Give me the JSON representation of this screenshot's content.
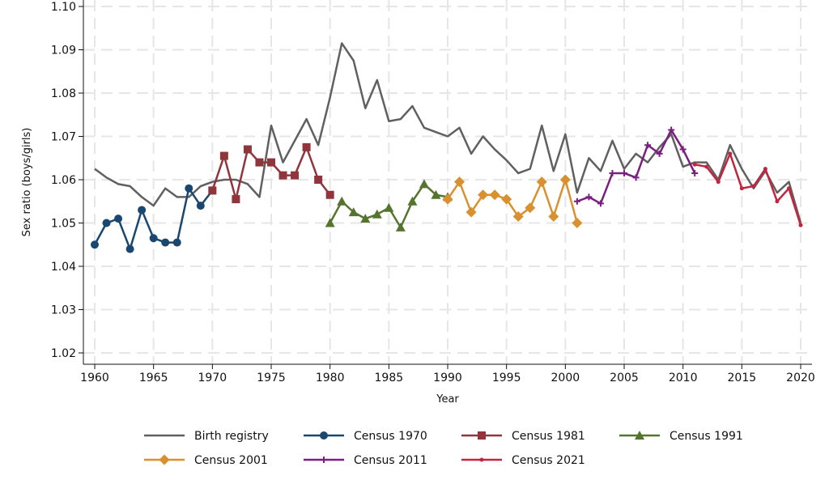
{
  "chart_data": {
    "type": "line",
    "xlabel": "Year",
    "ylabel": "Sex ratio (boys/girls)",
    "xlim": [
      1959,
      2021
    ],
    "ylim": [
      1.018,
      1.102
    ],
    "xticks": [
      1960,
      1965,
      1970,
      1975,
      1980,
      1985,
      1990,
      1995,
      2000,
      2005,
      2010,
      2015,
      2020
    ],
    "yticks": [
      "1.02",
      "1.03",
      "1.04",
      "1.05",
      "1.06",
      "1.07",
      "1.08",
      "1.09",
      "1.10"
    ],
    "grid": true,
    "legend_position": "bottom",
    "series": [
      {
        "name": "Birth registry",
        "color": "#606060",
        "marker": "none",
        "x0": 1960,
        "values": [
          1.0625,
          1.0605,
          1.059,
          1.0585,
          1.056,
          1.054,
          1.058,
          1.056,
          1.056,
          1.0585,
          1.0595,
          1.06,
          1.06,
          1.059,
          1.056,
          1.0725,
          1.064,
          1.069,
          1.074,
          1.068,
          1.079,
          1.0915,
          1.0875,
          1.0765,
          1.083,
          1.0735,
          1.074,
          1.077,
          1.072,
          1.071,
          1.07,
          1.072,
          1.066,
          1.07,
          1.067,
          1.0645,
          1.0615,
          1.0625,
          1.0725,
          1.062,
          1.0705,
          1.057,
          1.065,
          1.062,
          1.069,
          1.0625,
          1.066,
          1.064,
          1.0675,
          1.0705,
          1.063,
          1.064,
          1.064,
          1.06,
          1.068,
          1.0625,
          1.058,
          1.062,
          1.057,
          1.0595,
          1.05
        ]
      },
      {
        "name": "Census 1970",
        "color": "#1a476f",
        "marker": "circle",
        "x0": 1960,
        "values": [
          1.045,
          1.05,
          1.051,
          1.044,
          1.053,
          1.0465,
          1.0455,
          1.0455,
          1.058,
          1.054,
          1.0575
        ]
      },
      {
        "name": "Census 1981",
        "color": "#90353b",
        "marker": "square",
        "x0": 1970,
        "values": [
          1.0575,
          1.0655,
          1.0555,
          1.067,
          1.064,
          1.064,
          1.061,
          1.061,
          1.0675,
          1.06,
          1.0565
        ]
      },
      {
        "name": "Census 1991",
        "color": "#55752f",
        "marker": "triangle",
        "x0": 1980,
        "values": [
          1.05,
          1.055,
          1.0525,
          1.051,
          1.052,
          1.0535,
          1.049,
          1.055,
          1.059,
          1.0565,
          1.056
        ]
      },
      {
        "name": "Census 2001",
        "color": "#d9902f",
        "marker": "diamond",
        "x0": 1990,
        "values": [
          1.0555,
          1.0595,
          1.0525,
          1.0565,
          1.0565,
          1.0555,
          1.0515,
          1.0535,
          1.0595,
          1.0515,
          1.06,
          1.05
        ]
      },
      {
        "name": "Census 2011",
        "color": "#7a1f80",
        "marker": "plus",
        "x0": 2001,
        "values": [
          1.055,
          1.056,
          1.0545,
          1.0615,
          1.0615,
          1.0605,
          1.068,
          1.066,
          1.0715,
          1.067,
          1.0615
        ]
      },
      {
        "name": "Census 2021",
        "color": "#c1253f",
        "marker": "smallcircle",
        "x0": 2011,
        "values": [
          1.0635,
          1.063,
          1.0595,
          1.066,
          1.058,
          1.0585,
          1.0625,
          1.055,
          1.058,
          1.0495
        ]
      }
    ]
  }
}
